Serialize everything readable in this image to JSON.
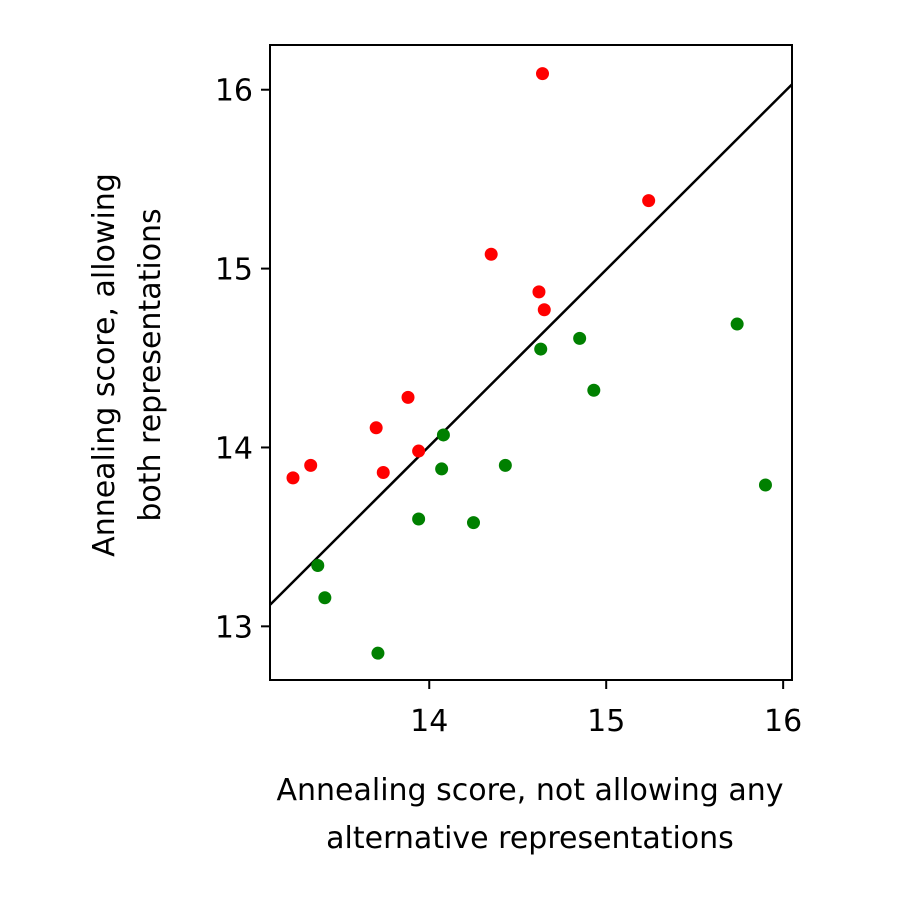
{
  "chart_data": {
    "type": "scatter",
    "title": "",
    "xlabel": [
      "Annealing score, not allowing any",
      "alternative representations"
    ],
    "ylabel": [
      "Annealing score, allowing",
      "both representations"
    ],
    "xlim": [
      13.1,
      16.05
    ],
    "ylim": [
      12.7,
      16.25
    ],
    "xticks": [
      14,
      15,
      16
    ],
    "yticks": [
      13,
      14,
      15,
      16
    ],
    "xtick_labels": [
      "14",
      "15",
      "16"
    ],
    "ytick_labels": [
      "13",
      "14",
      "15",
      "16"
    ],
    "grid": false,
    "reference_line": {
      "x": [
        13.1,
        16.05
      ],
      "y": [
        13.12,
        16.03
      ],
      "color": "#000000"
    },
    "series": [
      {
        "color": "#ff0000",
        "points": [
          [
            13.23,
            13.83
          ],
          [
            13.33,
            13.9
          ],
          [
            13.7,
            14.11
          ],
          [
            13.74,
            13.86
          ],
          [
            13.88,
            14.28
          ],
          [
            13.94,
            13.98
          ],
          [
            14.35,
            15.08
          ],
          [
            14.62,
            14.87
          ],
          [
            14.65,
            14.77
          ],
          [
            14.64,
            16.09
          ],
          [
            15.24,
            15.38
          ]
        ]
      },
      {
        "color": "#008000",
        "points": [
          [
            13.37,
            13.34
          ],
          [
            13.41,
            13.16
          ],
          [
            13.71,
            12.85
          ],
          [
            13.94,
            13.6
          ],
          [
            14.07,
            13.88
          ],
          [
            14.08,
            14.07
          ],
          [
            14.25,
            13.58
          ],
          [
            14.43,
            13.9
          ],
          [
            14.63,
            14.55
          ],
          [
            14.85,
            14.61
          ],
          [
            14.93,
            14.32
          ],
          [
            15.74,
            14.69
          ],
          [
            15.9,
            13.79
          ]
        ]
      }
    ]
  }
}
